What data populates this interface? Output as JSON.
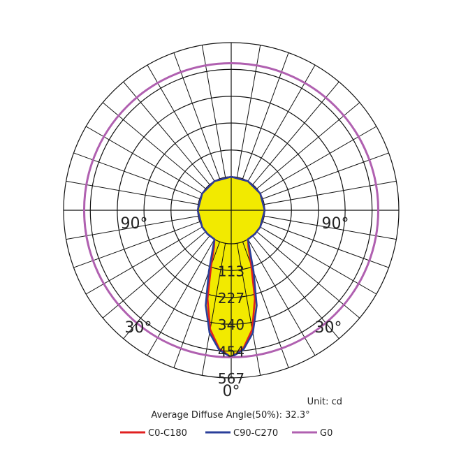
{
  "chart_data": {
    "type": "polar",
    "unit_label": "Unit: cd",
    "diffuse_angle_label": "Average Diffuse Angle(50%): 32.3°",
    "radial_ticks": [
      {
        "label": "113",
        "value": 113
      },
      {
        "label": "227",
        "value": 227
      },
      {
        "label": "340",
        "value": 340
      },
      {
        "label": "454",
        "value": 454
      },
      {
        "label": "567",
        "value": 567
      }
    ],
    "rmax": 567,
    "angle_labels": [
      {
        "label": "0°",
        "angle": 0
      },
      {
        "label": "30°",
        "angle": -30
      },
      {
        "label": "30°",
        "angle": 30
      },
      {
        "label": "90°",
        "angle": -90
      },
      {
        "label": "90°",
        "angle": 90
      }
    ],
    "fill_color": "#f2ea00",
    "series": [
      {
        "name": "C0-C180",
        "color": "#e02020",
        "angles": [
          -180,
          -150,
          -120,
          -90,
          -60,
          -45,
          -30,
          -25,
          -20,
          -15,
          -10,
          -5,
          0,
          5,
          10,
          15,
          20,
          25,
          30,
          45,
          60,
          90,
          120,
          150,
          180
        ],
        "values": [
          0,
          0,
          0,
          0,
          0,
          0,
          0,
          30,
          105,
          245,
          370,
          445,
          480,
          445,
          370,
          245,
          105,
          30,
          0,
          0,
          0,
          0,
          0,
          0,
          0
        ]
      },
      {
        "name": "C90-C270",
        "color": "#2a3f9a",
        "angles": [
          -180,
          -150,
          -120,
          -90,
          -60,
          -45,
          -30,
          -25,
          -20,
          -15,
          -10,
          -5,
          0,
          5,
          10,
          15,
          20,
          25,
          30,
          45,
          60,
          90,
          120,
          150,
          180
        ],
        "values": [
          0,
          0,
          0,
          0,
          0,
          0,
          0,
          45,
          135,
          275,
          385,
          450,
          480,
          450,
          385,
          275,
          135,
          45,
          0,
          0,
          0,
          0,
          0,
          0,
          0
        ]
      },
      {
        "name": "G0",
        "color": "#b060b0",
        "angles": [
          -180,
          -90,
          0,
          90,
          180
        ],
        "values": [
          480,
          480,
          480,
          480,
          480
        ]
      }
    ]
  }
}
